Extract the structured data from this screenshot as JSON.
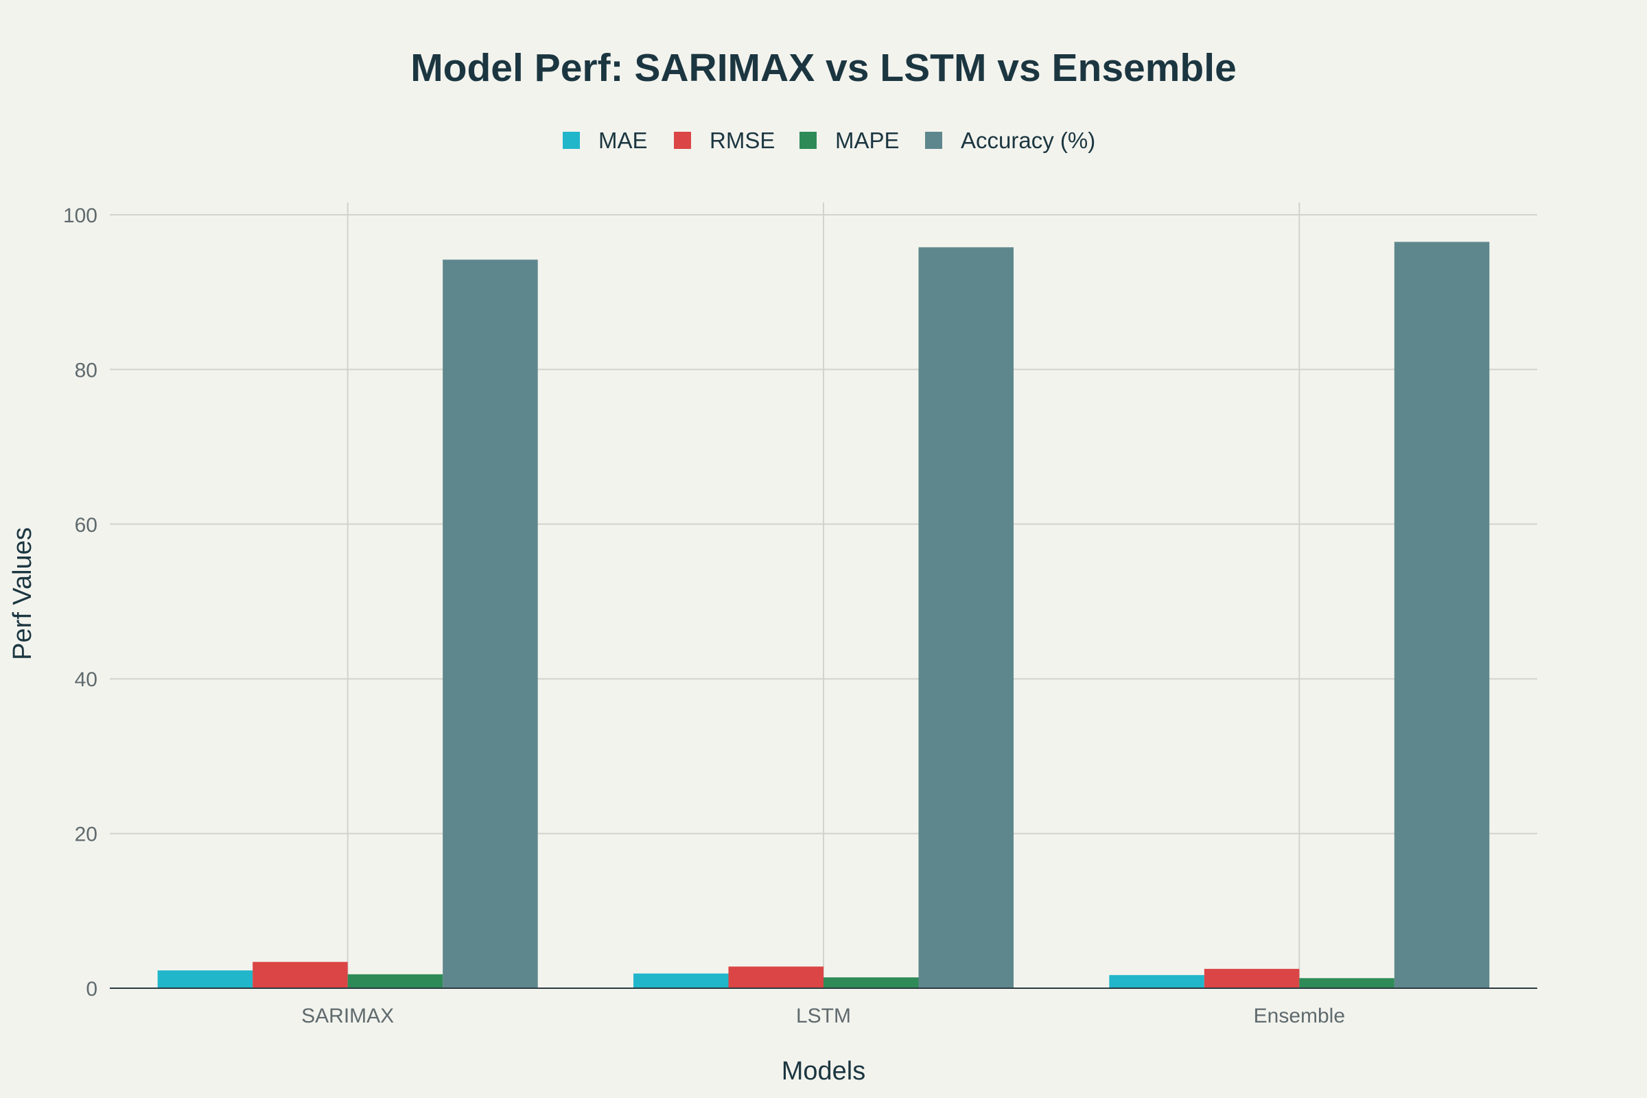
{
  "chart_data": {
    "type": "bar",
    "title": "Model Perf: SARIMAX vs LSTM vs Ensemble",
    "xlabel": "Models",
    "ylabel": "Perf Values",
    "categories": [
      "SARIMAX",
      "LSTM",
      "Ensemble"
    ],
    "series": [
      {
        "name": "MAE",
        "color": "#22b6cb",
        "values": [
          2.3,
          1.9,
          1.7
        ]
      },
      {
        "name": "RMSE",
        "color": "#db4545",
        "values": [
          3.4,
          2.8,
          2.5
        ]
      },
      {
        "name": "MAPE",
        "color": "#2e8b57",
        "values": [
          1.8,
          1.4,
          1.3
        ]
      },
      {
        "name": "Accuracy (%)",
        "color": "#5e878d",
        "values": [
          94.2,
          95.8,
          96.5
        ]
      }
    ],
    "ylim": [
      0,
      100
    ],
    "yticks": [
      0,
      20,
      40,
      60,
      80,
      100
    ],
    "grid": true,
    "legend_position": "top-center"
  }
}
